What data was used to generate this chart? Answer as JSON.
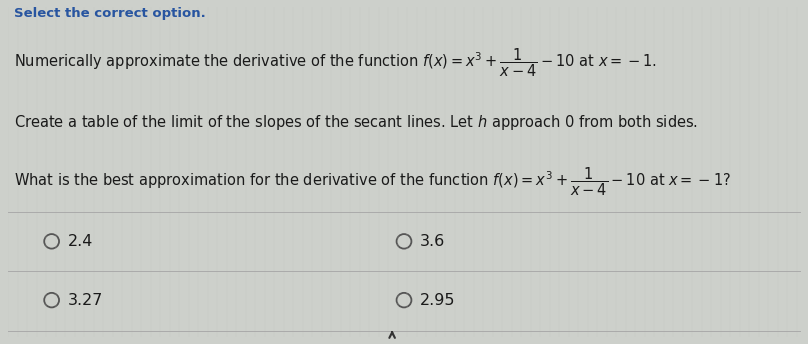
{
  "title": "Select the correct option.",
  "line1_plain": "Numerically approximate the derivative of the function ",
  "line1_math": "$f(x) = x^3 + \\dfrac{1}{x-4} - 10$",
  "line1_end": " at $x = -1$.",
  "line2_plain": "Create a table of the limit of the slopes of the secant lines. Let ",
  "line2_math": "$h$",
  "line2_end": " approach 0 from both sides.",
  "line3_plain": "What is the best approximation for the derivative of the function ",
  "line3_math": "$f(x) = x^3 + \\dfrac{1}{x-4} - 10$",
  "line3_end": " at $x = -1$?",
  "options": [
    "2.4",
    "3.6",
    "3.27",
    "2.95"
  ],
  "bg_color": "#cdd0cb",
  "text_color": "#1a1a1a",
  "title_color": "#2855a0",
  "circle_color": "#555555",
  "divider_color": "#aaaaaa",
  "grid_color": "#bfc2bc",
  "title_fontsize": 9.5,
  "body_fontsize": 10.5,
  "option_fontsize": 11.5
}
